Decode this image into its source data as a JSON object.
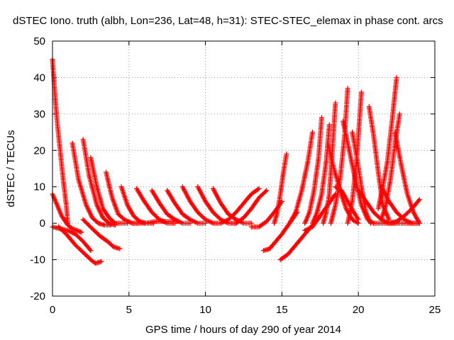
{
  "chart_data": {
    "type": "scatter",
    "title": "dSTEC Iono. truth (albh, Lon=236, Lat=48, h=31): STEC-STEC_elemax in phase cont. arcs",
    "xlabel": "GPS time / hours of day 290 of year 2014",
    "ylabel": "dSTEC  / TECUs",
    "xlim": [
      0,
      25
    ],
    "ylim": [
      -20,
      50
    ],
    "xticks": [
      0,
      5,
      10,
      15,
      20,
      25
    ],
    "yticks": [
      -20,
      -10,
      0,
      10,
      20,
      30,
      40,
      50
    ],
    "grid": true,
    "marker": "+",
    "color": "#ff0000",
    "series": [
      {
        "x": [
          0.0,
          0.15,
          0.3,
          0.5,
          0.7,
          0.9,
          1.0
        ],
        "y": [
          45,
          36,
          28,
          20,
          12,
          5,
          0
        ]
      },
      {
        "x": [
          0.0,
          0.3,
          0.6,
          1.0,
          1.3,
          1.6,
          1.9
        ],
        "y": [
          8,
          5,
          2,
          -0.5,
          -1.5,
          -2,
          -2.5
        ]
      },
      {
        "x": [
          0.0,
          0.5,
          1.0,
          1.5,
          2.0,
          2.5
        ],
        "y": [
          -1,
          -1.5,
          -2,
          -3,
          -5,
          -7.5
        ]
      },
      {
        "x": [
          0.4,
          0.9,
          1.5,
          2.0,
          2.5,
          2.8,
          3.2
        ],
        "y": [
          -1,
          -3,
          -6,
          -8,
          -10,
          -11,
          -10.5
        ]
      },
      {
        "x": [
          1.3,
          1.7,
          2.2,
          2.6,
          3.0,
          3.4,
          3.8
        ],
        "y": [
          22,
          12,
          5,
          1.5,
          0,
          -0.5,
          -0.5
        ]
      },
      {
        "x": [
          2.0,
          2.4,
          2.9,
          3.3,
          3.7,
          4.1
        ],
        "y": [
          23,
          13,
          5,
          1.5,
          0,
          -0.5
        ]
      },
      {
        "x": [
          2.5,
          2.9,
          3.3,
          3.7,
          4.1,
          4.5,
          4.9
        ],
        "y": [
          18,
          10,
          4,
          1.5,
          0,
          0,
          0
        ]
      },
      {
        "x": [
          2.0,
          2.6,
          3.1,
          3.6,
          4.0,
          4.4
        ],
        "y": [
          1,
          -1.5,
          -3.5,
          -5,
          -6.5,
          -7
        ]
      },
      {
        "x": [
          3.5,
          3.9,
          4.3,
          4.7,
          5.2,
          5.6
        ],
        "y": [
          14,
          7,
          2.5,
          1,
          0,
          0
        ]
      },
      {
        "x": [
          4.5,
          4.9,
          5.3,
          5.7,
          6.1,
          6.6
        ],
        "y": [
          10,
          5,
          2,
          0.5,
          0,
          0
        ]
      },
      {
        "x": [
          5.2,
          6.0,
          6.8,
          7.5,
          8.2
        ],
        "y": [
          0,
          0,
          0.5,
          0.5,
          0.5
        ]
      },
      {
        "x": [
          5.5,
          6.0,
          6.5,
          7.0,
          7.5,
          8.0
        ],
        "y": [
          9.5,
          6,
          3,
          1,
          0,
          0
        ]
      },
      {
        "x": [
          6.5,
          7.0,
          7.5,
          8.0,
          8.5,
          9.0
        ],
        "y": [
          9,
          5.5,
          2.5,
          1,
          0,
          0
        ]
      },
      {
        "x": [
          7.5,
          8.0,
          8.5,
          9.0,
          9.5,
          10.0
        ],
        "y": [
          9,
          5.5,
          2.5,
          1,
          0,
          0
        ]
      },
      {
        "x": [
          8.5,
          9.0,
          9.5,
          10.0,
          10.5,
          11.0
        ],
        "y": [
          10,
          6,
          3,
          1,
          0,
          0
        ]
      },
      {
        "x": [
          9.5,
          10.0,
          10.5,
          11.0,
          11.5,
          12.0
        ],
        "y": [
          10,
          6,
          3,
          1,
          0,
          0
        ]
      },
      {
        "x": [
          10.5,
          11.0,
          11.5,
          12.0,
          12.5,
          13.0
        ],
        "y": [
          9.5,
          5.5,
          2.5,
          1,
          0,
          0
        ]
      },
      {
        "x": [
          11.0,
          11.5,
          12.0,
          12.5,
          13.0,
          13.5
        ],
        "y": [
          0,
          1,
          3,
          5.5,
          8,
          9.5
        ]
      },
      {
        "x": [
          12.0,
          12.5,
          13.0,
          13.5,
          14.0
        ],
        "y": [
          0,
          1.5,
          4,
          7,
          9
        ]
      },
      {
        "x": [
          13.0,
          13.5,
          14.0,
          14.5,
          15.0
        ],
        "y": [
          -1,
          -1,
          0.5,
          3,
          6
        ]
      },
      {
        "x": [
          13.8,
          14.2,
          14.6,
          15.0,
          15.5,
          16.0
        ],
        "y": [
          -7.5,
          -7,
          -5,
          -3,
          0,
          3
        ]
      },
      {
        "x": [
          14.5,
          14.7,
          14.9,
          15.1,
          15.3
        ],
        "y": [
          0,
          3,
          8,
          14,
          19
        ]
      },
      {
        "x": [
          14.9,
          15.4,
          15.9,
          16.4,
          16.9,
          17.4
        ],
        "y": [
          -10,
          -8.5,
          -6,
          -3.5,
          -1,
          1.5
        ]
      },
      {
        "x": [
          15.5,
          15.9,
          16.3,
          16.7,
          17.0
        ],
        "y": [
          0,
          3,
          9,
          17,
          25
        ]
      },
      {
        "x": [
          16.5,
          16.8,
          17.1,
          17.4,
          17.6
        ],
        "y": [
          0,
          3,
          9,
          18,
          29
        ]
      },
      {
        "x": [
          17.0,
          17.3,
          17.6,
          17.9,
          18.1
        ],
        "y": [
          0,
          3,
          8,
          17,
          27
        ]
      },
      {
        "x": [
          17.7,
          17.9,
          18.1,
          18.3,
          18.5
        ],
        "y": [
          0,
          3,
          8,
          20,
          33
        ]
      },
      {
        "x": [
          16.5,
          17.0,
          17.5,
          18.0,
          18.5
        ],
        "y": [
          -2,
          -1,
          2,
          5,
          8
        ]
      },
      {
        "x": [
          18.2,
          18.5,
          18.8,
          19.1,
          19.3
        ],
        "y": [
          0,
          5,
          12,
          24,
          37
        ]
      },
      {
        "x": [
          18.0,
          18.4,
          18.8,
          19.2,
          19.6,
          20.0
        ],
        "y": [
          22,
          15,
          9,
          4,
          1,
          0
        ]
      },
      {
        "x": [
          18.5,
          18.9,
          19.3,
          19.7,
          20.0
        ],
        "y": [
          10,
          9,
          6,
          3,
          1
        ]
      },
      {
        "x": [
          19.3,
          19.6,
          19.9,
          20.2
        ],
        "y": [
          0,
          6,
          18,
          36
        ]
      },
      {
        "x": [
          19.0,
          19.4,
          19.8,
          20.2,
          20.6,
          21.0
        ],
        "y": [
          28,
          20,
          12,
          5,
          1,
          0
        ]
      },
      {
        "x": [
          19.6,
          19.9,
          20.2,
          20.5,
          20.8
        ],
        "y": [
          25,
          18,
          10,
          3,
          0
        ]
      },
      {
        "x": [
          20.7,
          21.0,
          21.3,
          21.6,
          22.0
        ],
        "y": [
          32,
          24,
          14,
          5,
          1
        ]
      },
      {
        "x": [
          20.0,
          20.5,
          21.0,
          21.5,
          22.0,
          22.5
        ],
        "y": [
          9,
          6,
          3,
          1,
          0,
          0
        ]
      },
      {
        "x": [
          21.3,
          21.6,
          21.9,
          22.2,
          22.5
        ],
        "y": [
          4,
          10,
          17,
          28,
          40
        ]
      },
      {
        "x": [
          21.5,
          21.8,
          22.1,
          22.4,
          22.7
        ],
        "y": [
          1,
          5,
          12,
          22,
          30
        ]
      },
      {
        "x": [
          22.4,
          22.8,
          23.2,
          23.6,
          24.0
        ],
        "y": [
          25,
          16,
          8,
          3,
          0
        ]
      },
      {
        "x": [
          21.0,
          21.6,
          22.2,
          22.8,
          23.4,
          24.0
        ],
        "y": [
          0,
          0,
          0,
          0,
          0,
          0
        ]
      },
      {
        "x": [
          21.5,
          22.0,
          22.5,
          23.0,
          23.5,
          24.0
        ],
        "y": [
          10,
          6,
          3,
          1,
          0,
          0
        ]
      },
      {
        "x": [
          22.0,
          22.5,
          23.0,
          23.5,
          24.0
        ],
        "y": [
          0,
          0.5,
          2,
          4,
          6.5
        ]
      }
    ]
  }
}
